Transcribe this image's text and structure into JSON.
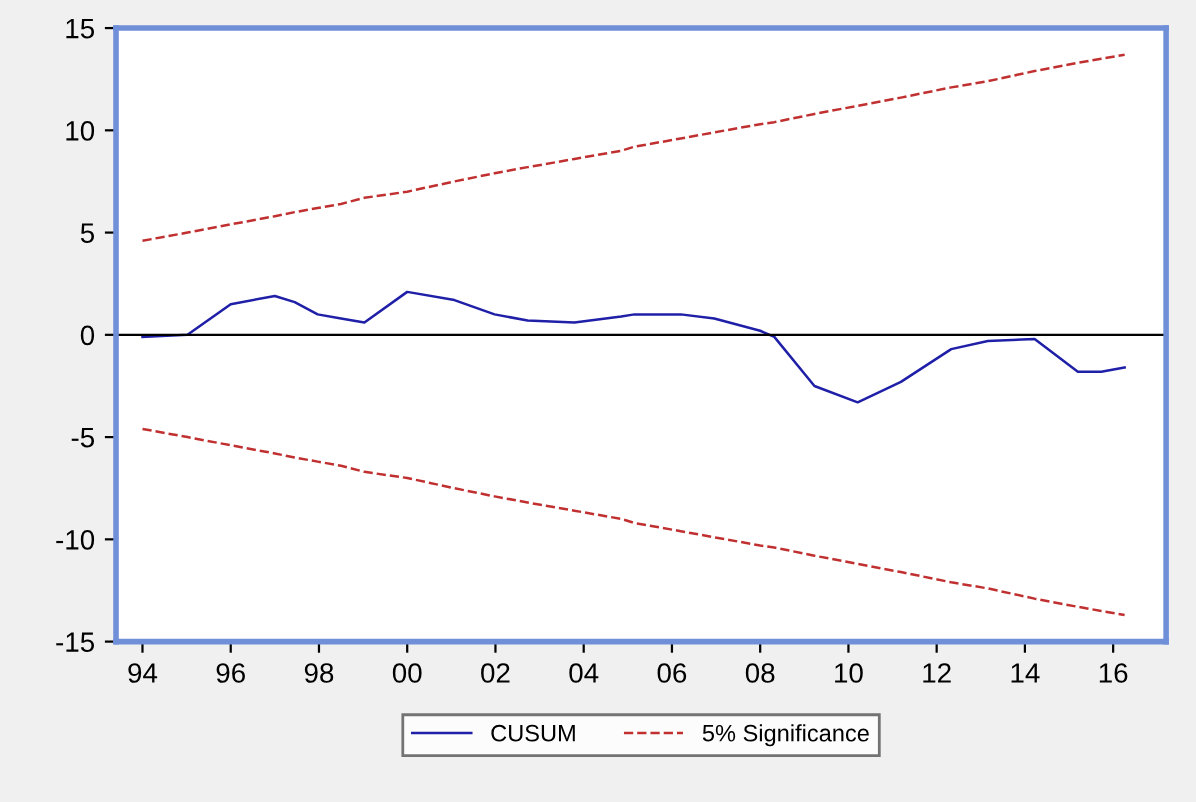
{
  "chart_data": {
    "type": "line",
    "x": [
      1994.0,
      1995.02,
      1996.0,
      1997.0,
      1997.45,
      1997.97,
      1998.5,
      1999.03,
      2000.0,
      2001.07,
      2001.98,
      2002.73,
      2003.79,
      2004.85,
      2005.15,
      2006.2,
      2006.96,
      2008.0,
      2008.32,
      2009.23,
      2010.21,
      2011.19,
      2012.33,
      2013.16,
      2014.22,
      2015.2,
      2015.73,
      2016.26
    ],
    "series": [
      {
        "name": "CUSUM",
        "color": "#1f1fa8",
        "line_style": "solid",
        "values": [
          -0.1,
          0.0,
          1.5,
          1.9,
          1.6,
          1.0,
          0.8,
          0.6,
          2.1,
          1.7,
          1.0,
          0.7,
          0.6,
          0.9,
          1.0,
          1.0,
          0.8,
          0.2,
          -0.1,
          -2.5,
          -3.3,
          -2.3,
          -0.7,
          -0.3,
          -0.2,
          -1.8,
          -1.8,
          -1.6
        ]
      },
      {
        "name": "5% Significance",
        "color": "#c03030",
        "line_style": "dashed",
        "values": [
          4.6,
          5.0,
          5.4,
          5.8,
          6.0,
          6.2,
          6.4,
          6.7,
          7.0,
          7.5,
          7.9,
          8.2,
          8.6,
          9.0,
          9.2,
          9.6,
          9.9,
          10.3,
          10.4,
          10.8,
          11.2,
          11.6,
          12.1,
          12.4,
          12.9,
          13.3,
          13.5,
          13.7
        ]
      },
      {
        "color": "#c03030",
        "line_style": "dashed",
        "values": [
          -4.6,
          -5.0,
          -5.4,
          -5.8,
          -6.0,
          -6.2,
          -6.4,
          -6.7,
          -7.0,
          -7.5,
          -7.9,
          -8.2,
          -8.6,
          -9.0,
          -9.2,
          -9.6,
          -9.9,
          -10.3,
          -10.4,
          -10.8,
          -11.2,
          -11.6,
          -12.1,
          -12.4,
          -12.9,
          -13.3,
          -13.5,
          -13.7
        ]
      }
    ],
    "xlim": [
      1993.4,
      2017.2
    ],
    "ylim": [
      -15,
      15
    ],
    "xticks": [
      {
        "value": 1994,
        "label": "94"
      },
      {
        "value": 1996,
        "label": "96"
      },
      {
        "value": 1998,
        "label": "98"
      },
      {
        "value": 2000,
        "label": "00"
      },
      {
        "value": 2002,
        "label": "02"
      },
      {
        "value": 2004,
        "label": "04"
      },
      {
        "value": 2006,
        "label": "06"
      },
      {
        "value": 2008,
        "label": "08"
      },
      {
        "value": 2010,
        "label": "10"
      },
      {
        "value": 2012,
        "label": "12"
      },
      {
        "value": 2014,
        "label": "14"
      },
      {
        "value": 2016,
        "label": "16"
      }
    ],
    "yticks": [
      -15,
      -10,
      -5,
      0,
      5,
      10,
      15
    ],
    "ref_lines": [
      {
        "axis": "y",
        "value": 0,
        "color": "#000000"
      }
    ],
    "grid": false,
    "legend": "bottom"
  }
}
